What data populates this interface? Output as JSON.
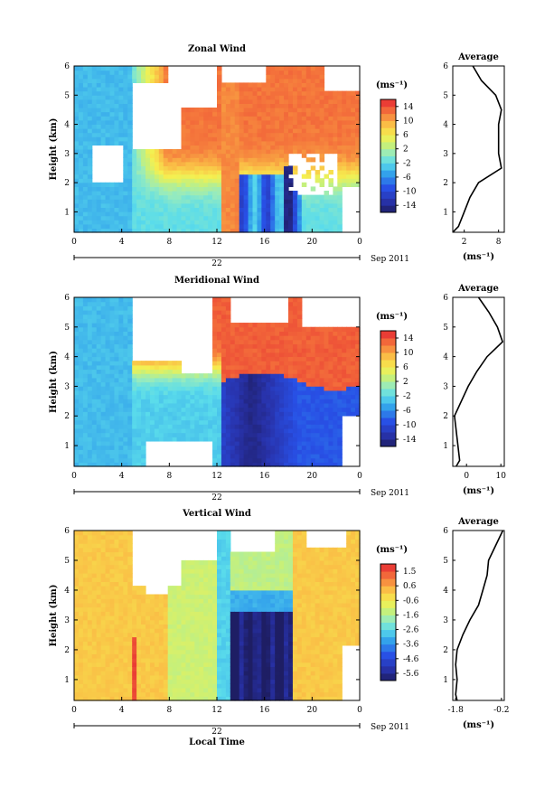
{
  "chart_data": [
    {
      "type": "heatmap",
      "title": "Zonal Wind",
      "ylabel": "Height (km)",
      "xticks": [
        "0",
        "4",
        "8",
        "12",
        "16",
        "20",
        "0"
      ],
      "date_label": "22",
      "date_suffix": "Sep 2011",
      "x_range_hours": [
        0,
        24
      ],
      "y_range_km": [
        0.3,
        6
      ],
      "yticks": [
        "1",
        "2",
        "3",
        "4",
        "5",
        "6"
      ],
      "colorbar": {
        "unit": "(ms⁻¹)",
        "range": [
          -16,
          16
        ],
        "ticks": [
          "14",
          "10",
          "6",
          "2",
          "-2",
          "-6",
          "-10",
          "-14"
        ]
      },
      "average": {
        "title": "Average",
        "xlabel": "(ms⁻¹)",
        "xticks": [
          "2",
          "8"
        ],
        "xlim": [
          0,
          9
        ],
        "profile_heights": [
          0.3,
          0.5,
          1.0,
          1.5,
          2.0,
          2.5,
          3.0,
          3.5,
          4.0,
          4.5,
          5.0,
          5.5,
          6.0
        ],
        "profile_values": [
          0.0,
          1.0,
          2.0,
          3.0,
          4.5,
          8.5,
          8.0,
          8.0,
          8.0,
          8.5,
          7.5,
          5.0,
          3.5
        ]
      }
    },
    {
      "type": "heatmap",
      "title": "Meridional Wind",
      "ylabel": "Height (km)",
      "xticks": [
        "0",
        "4",
        "8",
        "12",
        "16",
        "20",
        "0"
      ],
      "date_label": "22",
      "date_suffix": "Sep 2011",
      "x_range_hours": [
        0,
        24
      ],
      "y_range_km": [
        0.3,
        6
      ],
      "yticks": [
        "1",
        "2",
        "3",
        "4",
        "5",
        "6"
      ],
      "colorbar": {
        "unit": "(ms⁻¹)",
        "range": [
          -16,
          16
        ],
        "ticks": [
          "14",
          "10",
          "6",
          "2",
          "-2",
          "-6",
          "-10",
          "-14"
        ]
      },
      "average": {
        "title": "Average",
        "xlabel": "(ms⁻¹)",
        "xticks": [
          "0",
          "10"
        ],
        "xlim": [
          -4,
          11
        ],
        "profile_heights": [
          0.3,
          0.5,
          1.0,
          1.5,
          2.0,
          2.5,
          3.0,
          3.5,
          4.0,
          4.5,
          5.0,
          5.5,
          6.0
        ],
        "profile_values": [
          -3.0,
          -2.0,
          -2.5,
          -3.0,
          -3.5,
          -1.5,
          0.5,
          3.0,
          6.0,
          10.5,
          9.0,
          6.5,
          3.5
        ]
      }
    },
    {
      "type": "heatmap",
      "title": "Vertical Wind",
      "ylabel": "Height (km)",
      "xlabel": "Local Time",
      "xticks": [
        "0",
        "4",
        "8",
        "12",
        "16",
        "20",
        "0"
      ],
      "date_label": "22",
      "date_suffix": "Sep 2011",
      "x_range_hours": [
        0,
        24
      ],
      "y_range_km": [
        0.3,
        6
      ],
      "yticks": [
        "1",
        "2",
        "3",
        "4",
        "5",
        "6"
      ],
      "colorbar": {
        "unit": "(ms⁻¹)",
        "range": [
          -6.1,
          2.0
        ],
        "ticks": [
          "1.5",
          "0.6",
          "-0.6",
          "-1.6",
          "-2.6",
          "-3.6",
          "-4.6",
          "-5.6"
        ]
      },
      "average": {
        "title": "Average",
        "xlabel": "(ms⁻¹)",
        "xticks": [
          "-1.8",
          "-0.2"
        ],
        "xlim": [
          -1.9,
          -0.1
        ],
        "profile_heights": [
          0.3,
          0.5,
          1.0,
          1.5,
          2.0,
          2.5,
          3.0,
          3.5,
          4.0,
          4.5,
          5.0,
          5.5,
          6.0
        ],
        "profile_values": [
          -1.75,
          -1.8,
          -1.75,
          -1.8,
          -1.75,
          -1.55,
          -1.3,
          -1.0,
          -0.85,
          -0.7,
          -0.65,
          -0.4,
          -0.15
        ]
      }
    }
  ]
}
